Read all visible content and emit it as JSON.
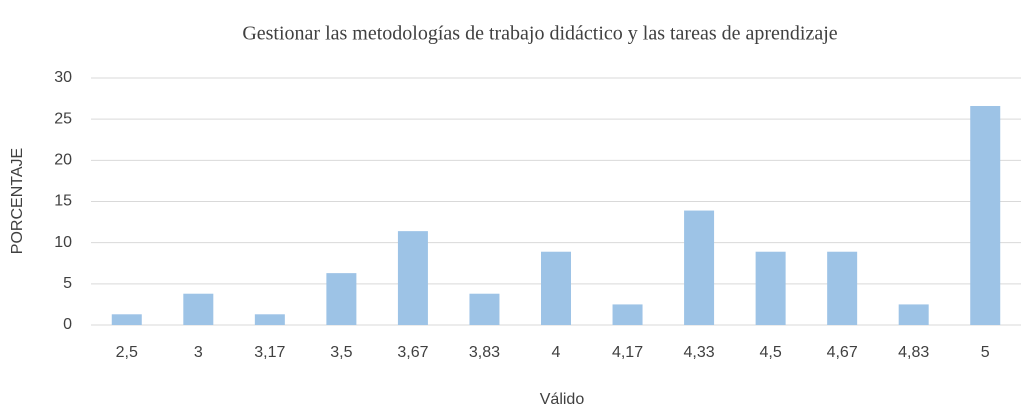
{
  "chart_data": {
    "type": "bar",
    "title": "Gestionar las metodologías de trabajo didáctico y las tareas de aprendizaje",
    "x_label": "Válido",
    "y_label": "PORCENTAJE",
    "categories": [
      "2,5",
      "3",
      "3,17",
      "3,5",
      "3,67",
      "3,83",
      "4",
      "4,17",
      "4,33",
      "4,5",
      "4,67",
      "4,83",
      "5"
    ],
    "values": [
      1.3,
      3.8,
      1.3,
      6.3,
      11.4,
      3.8,
      8.9,
      2.5,
      13.9,
      8.9,
      8.9,
      2.5,
      26.6
    ],
    "color": "#9dc3e6",
    "ylim": [
      0,
      30
    ],
    "yticks": [
      0,
      5,
      10,
      15,
      20,
      25,
      30
    ],
    "grid": true
  }
}
